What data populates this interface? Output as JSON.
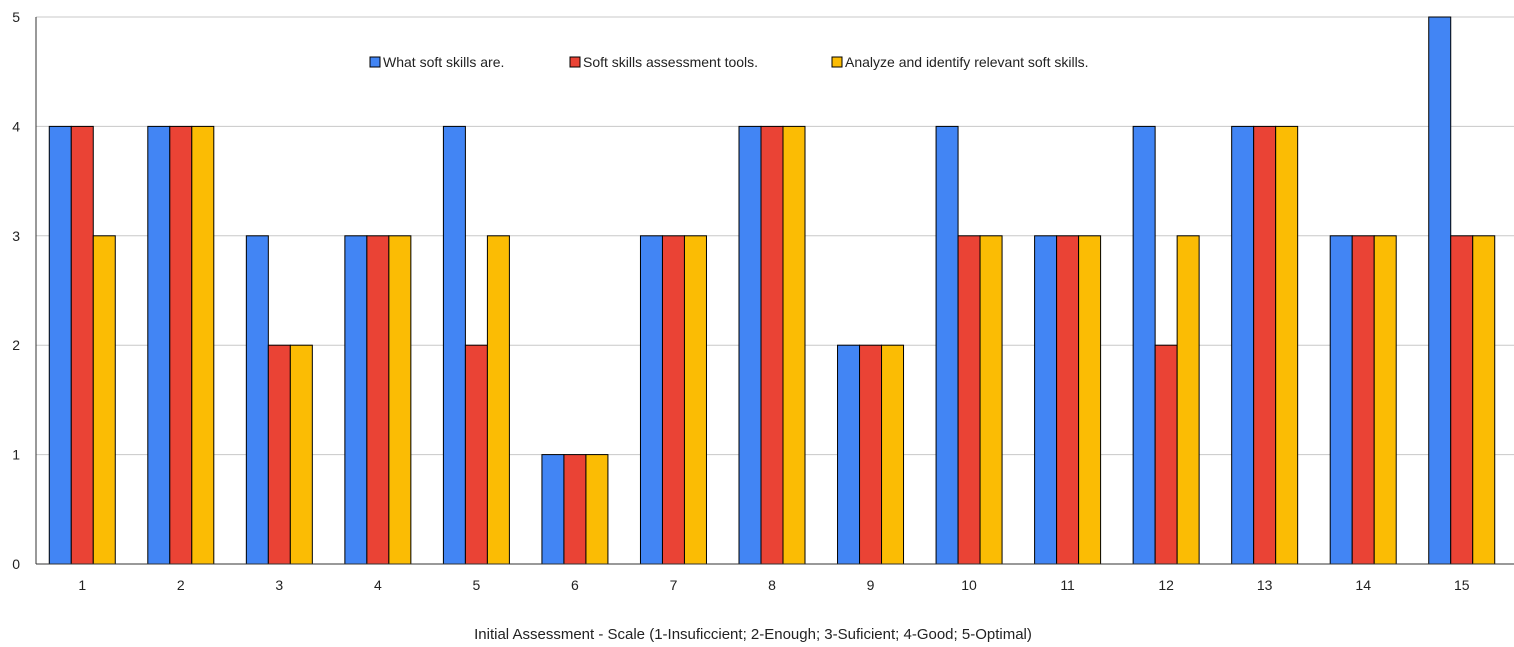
{
  "chart_data": {
    "type": "bar",
    "title": "",
    "xlabel": "Initial Assessment - Scale (1-Insuficcient; 2-Enough; 3-Suficient; 4-Good; 5-Optimal)",
    "ylabel": "",
    "ylim": [
      0,
      5
    ],
    "yticks": [
      "0",
      "1",
      "2",
      "3",
      "4",
      "5"
    ],
    "grid": true,
    "legend_position": "top-center",
    "categories": [
      "1",
      "2",
      "3",
      "4",
      "5",
      "6",
      "7",
      "8",
      "9",
      "10",
      "11",
      "12",
      "13",
      "14",
      "15"
    ],
    "series": [
      {
        "name": "What soft skills are.",
        "color": "#4285f4",
        "values": [
          4,
          4,
          3,
          3,
          4,
          1,
          3,
          4,
          2,
          4,
          3,
          4,
          4,
          3,
          5
        ]
      },
      {
        "name": "Soft skills assessment tools.",
        "color": "#ea4335",
        "values": [
          4,
          4,
          2,
          3,
          2,
          1,
          3,
          4,
          2,
          3,
          3,
          2,
          4,
          3,
          3
        ]
      },
      {
        "name": "Analyze and identify relevant soft skills.",
        "color": "#fbbc04",
        "values": [
          3,
          4,
          2,
          3,
          3,
          1,
          3,
          4,
          2,
          3,
          3,
          3,
          4,
          3,
          3
        ]
      }
    ]
  }
}
